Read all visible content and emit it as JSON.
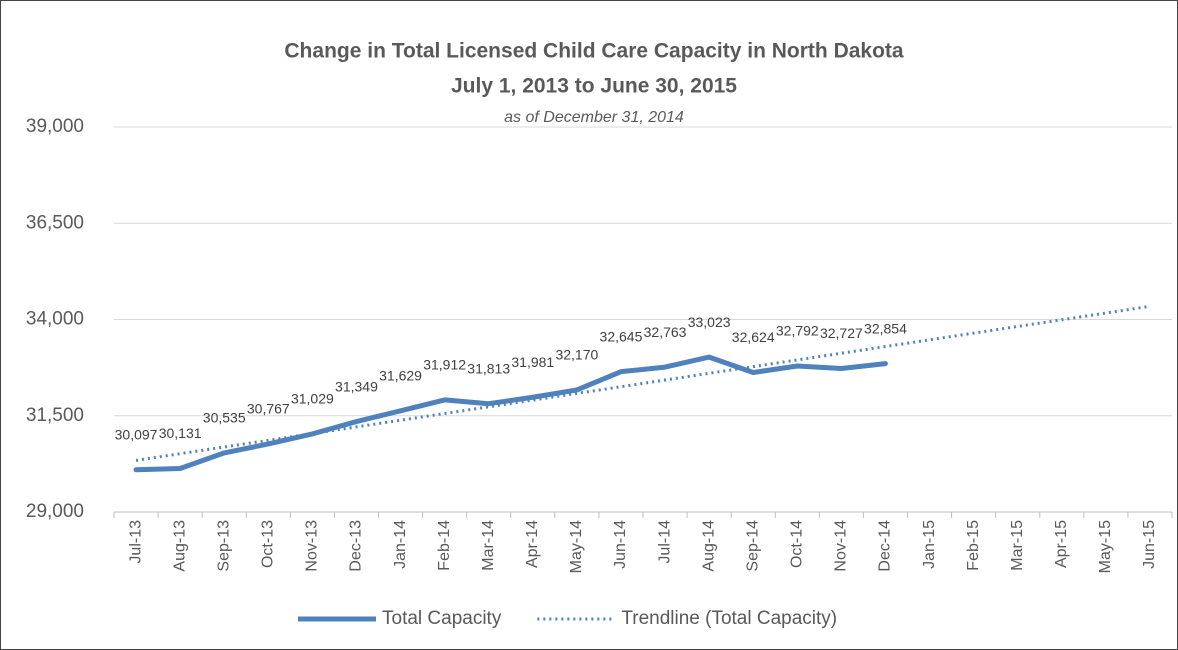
{
  "chart_data": {
    "type": "line",
    "title": [
      "Change in Total Licensed Child Care Capacity in North Dakota",
      "July 1, 2013 to June 30, 2015"
    ],
    "subtitle": "as of December 31, 2014",
    "categories": [
      "Jul-13",
      "Aug-13",
      "Sep-13",
      "Oct-13",
      "Nov-13",
      "Dec-13",
      "Jan-14",
      "Feb-14",
      "Mar-14",
      "Apr-14",
      "May-14",
      "Jun-14",
      "Jul-14",
      "Aug-14",
      "Sep-14",
      "Oct-14",
      "Nov-14",
      "Dec-14",
      "Jan-15",
      "Feb-15",
      "Mar-15",
      "Apr-15",
      "May-15",
      "Jun-15"
    ],
    "series": [
      {
        "name": "Total Capacity",
        "color": "#4f81bd",
        "style": "solid",
        "values": [
          30097,
          30131,
          30535,
          30767,
          31029,
          31349,
          31629,
          31912,
          31813,
          31981,
          32170,
          32645,
          32763,
          33023,
          32624,
          32792,
          32727,
          32854,
          null,
          null,
          null,
          null,
          null,
          null
        ],
        "value_labels": [
          "30,097",
          "30,131",
          "30,535",
          "30,767",
          "31,029",
          "31,349",
          "31,629",
          "31,912",
          "31,813",
          "31,981",
          "32,170",
          "32,645",
          "32,763",
          "33,023",
          "32,624",
          "32,792",
          "32,727",
          "32,854",
          null,
          null,
          null,
          null,
          null,
          null
        ]
      },
      {
        "name": "Trendline (Total Capacity)",
        "color": "#4f81bd",
        "style": "dotted",
        "values": [
          30340,
          30514,
          30688,
          30862,
          31036,
          31210,
          31384,
          31558,
          31732,
          31906,
          32080,
          32254,
          32428,
          32602,
          32776,
          32950,
          33124,
          33298,
          33472,
          33646,
          33820,
          33994,
          34168,
          34342
        ]
      }
    ],
    "ylim": [
      29000,
      39000
    ],
    "yticks": [
      {
        "value": 29000,
        "label": "29,000"
      },
      {
        "value": 31500,
        "label": "31,500"
      },
      {
        "value": 34000,
        "label": "34,000"
      },
      {
        "value": 36500,
        "label": "36,500"
      },
      {
        "value": 39000,
        "label": "39,000"
      }
    ],
    "grid": true,
    "legend": "bottom"
  }
}
